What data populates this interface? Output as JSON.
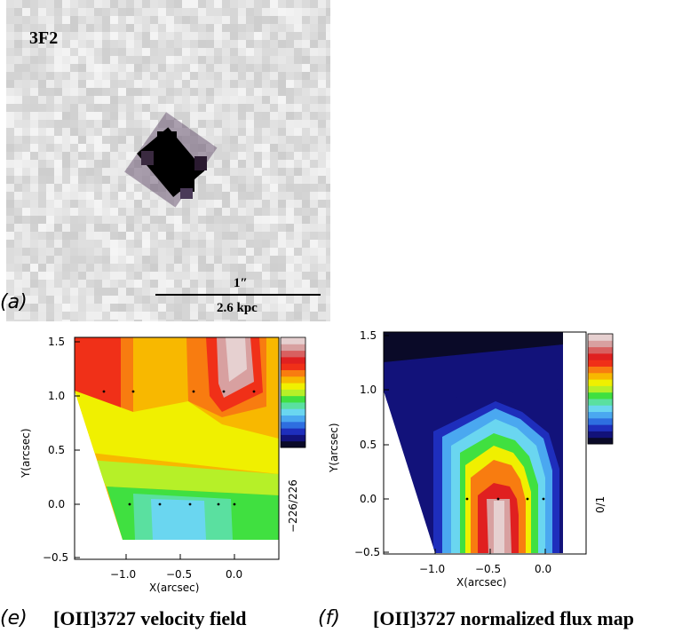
{
  "panel_a": {
    "id_label": "3F2",
    "panel_label": "(a)",
    "scale_arcsec": "1″",
    "scale_kpc": "2.6 kpc"
  },
  "panel_e": {
    "panel_label": "(e)",
    "caption": "[OII]3727 velocity field",
    "colorbar_label": "−226/226",
    "xlabel": "X(arcsec)",
    "ylabel": "Y(arcsec)",
    "xticks": [
      "−1.0",
      "−0.5",
      "0.0"
    ],
    "yticks": [
      "−0.5",
      "0.0",
      "0.5",
      "1.0",
      "1.5"
    ]
  },
  "panel_f": {
    "panel_label": "(f)",
    "caption": "[OII]3727 normalized flux map",
    "colorbar_label": "0/1",
    "xlabel": "X(arcsec)",
    "ylabel": "Y(arcsec)",
    "xticks": [
      "−1.0",
      "−0.5",
      "0.0"
    ],
    "yticks": [
      "−0.5",
      "0.0",
      "0.5",
      "1.0",
      "1.5"
    ]
  },
  "colors": {
    "colorbar": [
      "#0a0a28",
      "#12127a",
      "#1e2ebc",
      "#2e6ee0",
      "#4aa8f0",
      "#6ad6f0",
      "#5ae0a0",
      "#40e040",
      "#b6f028",
      "#f0f000",
      "#f8b800",
      "#f87c10",
      "#f03018",
      "#e02020",
      "#d86060",
      "#d8a0a0",
      "#e6d0d0"
    ]
  }
}
